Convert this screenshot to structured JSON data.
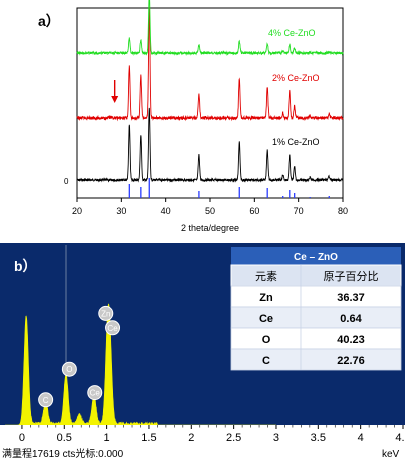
{
  "chart_data": [
    {
      "type": "line",
      "panel_label": "a）",
      "xlabel": "2 theta/degree",
      "ylabel": "",
      "xlim": [
        20,
        80
      ],
      "x_ticks": [
        20,
        30,
        40,
        50,
        60,
        70,
        80
      ],
      "y_tick_label": "0",
      "grid": false,
      "annotations": [
        {
          "type": "arrow",
          "x": 28.5,
          "color": "#e00000"
        }
      ],
      "series": [
        {
          "name": "1% Ce-ZnO",
          "color": "#000000"
        },
        {
          "name": "2% Ce-ZnO",
          "color": "#e00000"
        },
        {
          "name": "4% Ce-ZnO",
          "color": "#22dd22"
        }
      ],
      "peaks": [
        {
          "x": 31.8,
          "h1": 55,
          "h2": 52,
          "h4": 15
        },
        {
          "x": 34.4,
          "h1": 45,
          "h2": 42,
          "h4": 13
        },
        {
          "x": 36.3,
          "h1": 72,
          "h2": 110,
          "h4": 60
        },
        {
          "x": 47.5,
          "h1": 25,
          "h2": 24,
          "h4": 8
        },
        {
          "x": 56.6,
          "h1": 38,
          "h2": 40,
          "h4": 12
        },
        {
          "x": 62.9,
          "h1": 30,
          "h2": 30,
          "h4": 9
        },
        {
          "x": 66.4,
          "h1": 5,
          "h2": 5,
          "h4": 2
        },
        {
          "x": 68.0,
          "h1": 25,
          "h2": 27,
          "h4": 9
        },
        {
          "x": 69.1,
          "h1": 13,
          "h2": 12,
          "h4": 5
        },
        {
          "x": 72.6,
          "h1": 3,
          "h2": 3,
          "h4": 1
        },
        {
          "x": 76.9,
          "h1": 4,
          "h2": 4,
          "h4": 1
        }
      ],
      "reference_lines": [
        {
          "x": 31.8,
          "h": 14
        },
        {
          "x": 34.4,
          "h": 11
        },
        {
          "x": 36.3,
          "h": 20
        },
        {
          "x": 47.5,
          "h": 7
        },
        {
          "x": 56.6,
          "h": 11
        },
        {
          "x": 62.9,
          "h": 10
        },
        {
          "x": 66.4,
          "h": 2
        },
        {
          "x": 68.0,
          "h": 8
        },
        {
          "x": 69.1,
          "h": 5
        },
        {
          "x": 72.6,
          "h": 1
        },
        {
          "x": 76.9,
          "h": 2
        }
      ]
    },
    {
      "type": "area",
      "panel_label": "b）",
      "xlabel": "keV",
      "xlim": [
        -0.2,
        4.5
      ],
      "x_ticks": [
        "0",
        "0.5",
        "1",
        "1.5",
        "2",
        "2.5",
        "3",
        "3.5",
        "4",
        "4.5"
      ],
      "footer": "满量程17619 cts光标:0.000",
      "background": "#0a2a6b",
      "fill_color": "#f3f300",
      "peaks": [
        {
          "x": 0.05,
          "y": 0.6
        },
        {
          "x": 0.28,
          "y": 0.12
        },
        {
          "x": 0.52,
          "y": 0.28
        },
        {
          "x": 0.68,
          "y": 0.05
        },
        {
          "x": 0.85,
          "y": 0.16
        },
        {
          "x": 1.01,
          "y": 0.45
        },
        {
          "x": 1.04,
          "y": 0.35
        }
      ],
      "element_markers": [
        {
          "label": "C",
          "x": 0.28,
          "y": 0.14
        },
        {
          "label": "O",
          "x": 0.56,
          "y": 0.31
        },
        {
          "label": "Ce",
          "x": 0.86,
          "y": 0.18
        },
        {
          "label": "Zn",
          "x": 0.99,
          "y": 0.62
        },
        {
          "label": "Ce",
          "x": 1.07,
          "y": 0.54
        }
      ],
      "table": {
        "title": "Ce – ZnO",
        "headers": [
          "元素",
          "原子百分比"
        ],
        "rows": [
          [
            "Zn",
            "36.37"
          ],
          [
            "Ce",
            "0.64"
          ],
          [
            "O",
            "40.23"
          ],
          [
            "C",
            "22.76"
          ]
        ]
      }
    }
  ]
}
